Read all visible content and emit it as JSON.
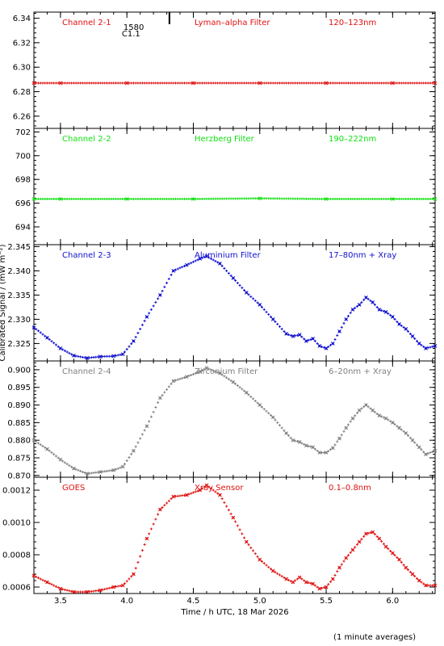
{
  "xlabel": "Time / h UTC, 18 Mar 2026",
  "ylabel": "Calibrated Signal / (mW m⁻²)",
  "footnote": "(1 minute averages)",
  "xaxis": {
    "range": [
      3.3,
      6.32
    ],
    "ticks": [
      "3.5",
      "4.0",
      "4.5",
      "5.0",
      "5.5",
      "6.0"
    ]
  },
  "flare_annotation": {
    "time": "1580",
    "class": "C1.1",
    "t_hours": 4.32
  },
  "chart_data": [
    {
      "type": "scatter",
      "channel": "Channel 2-1",
      "filter": "Lyman–alpha Filter",
      "band": "120–123nm",
      "color": "#e01010",
      "ylim": [
        6.25,
        6.345
      ],
      "yticks": [
        "6.26",
        "6.28",
        "6.30",
        "6.32",
        "6.34"
      ],
      "series": [
        {
          "x": [
            3.3,
            3.5,
            4.0,
            4.5,
            5.0,
            5.5,
            6.0,
            6.32
          ],
          "y": [
            6.287,
            6.287,
            6.287,
            6.287,
            6.287,
            6.287,
            6.287,
            6.287
          ]
        }
      ]
    },
    {
      "type": "scatter",
      "channel": "Channel 2-2",
      "filter": "Herzberg Filter",
      "band": "190–222nm",
      "color": "#10e010",
      "ylim": [
        692.5,
        702.3
      ],
      "yticks": [
        "694",
        "696",
        "698",
        "700",
        "702"
      ],
      "series": [
        {
          "x": [
            3.3,
            3.5,
            4.0,
            4.5,
            5.0,
            5.5,
            6.0,
            6.32
          ],
          "y": [
            696.35,
            696.35,
            696.35,
            696.35,
            696.4,
            696.35,
            696.35,
            696.35
          ]
        }
      ]
    },
    {
      "type": "scatter",
      "channel": "Channel 2-3",
      "filter": "Aluminium Filter",
      "band": "17–80nm + Xray",
      "color": "#1010d0",
      "ylim": [
        2.3214,
        2.3454
      ],
      "yticks": [
        "2.325",
        "2.330",
        "2.335",
        "2.340",
        "2.345"
      ],
      "series": [
        {
          "x": [
            3.3,
            3.4,
            3.5,
            3.6,
            3.7,
            3.8,
            3.9,
            3.97,
            4.05,
            4.15,
            4.25,
            4.35,
            4.45,
            4.55,
            4.6,
            4.7,
            4.8,
            4.9,
            5.0,
            5.1,
            5.2,
            5.25,
            5.3,
            5.35,
            5.4,
            5.45,
            5.5,
            5.55,
            5.6,
            5.65,
            5.7,
            5.75,
            5.8,
            5.85,
            5.9,
            5.95,
            6.0,
            6.05,
            6.1,
            6.15,
            6.2,
            6.25,
            6.32
          ],
          "y": [
            2.3283,
            2.3262,
            2.324,
            2.3225,
            2.322,
            2.3223,
            2.3224,
            2.3228,
            2.3255,
            2.3305,
            2.335,
            2.34,
            2.3412,
            2.3425,
            2.343,
            2.3415,
            2.3385,
            2.3355,
            2.333,
            2.33,
            2.327,
            2.3265,
            2.3268,
            2.3255,
            2.326,
            2.3245,
            2.324,
            2.325,
            2.3275,
            2.33,
            2.332,
            2.333,
            2.3345,
            2.3335,
            2.332,
            2.3315,
            2.3305,
            2.329,
            2.328,
            2.3265,
            2.325,
            2.324,
            2.3245
          ]
        }
      ]
    },
    {
      "type": "scatter",
      "channel": "Channel 2-4",
      "filter": "Zirconium Filter",
      "band": "6–20nm + Xray",
      "color": "#808080",
      "ylim": [
        0.8695,
        0.9025
      ],
      "yticks": [
        "0.870",
        "0.875",
        "0.880",
        "0.885",
        "0.890",
        "0.895",
        "0.900"
      ],
      "series": [
        {
          "x": [
            3.3,
            3.4,
            3.5,
            3.6,
            3.7,
            3.8,
            3.9,
            3.97,
            4.05,
            4.15,
            4.25,
            4.35,
            4.45,
            4.55,
            4.6,
            4.7,
            4.8,
            4.9,
            5.0,
            5.1,
            5.2,
            5.25,
            5.3,
            5.35,
            5.4,
            5.45,
            5.5,
            5.55,
            5.6,
            5.65,
            5.7,
            5.75,
            5.8,
            5.85,
            5.9,
            5.95,
            6.0,
            6.05,
            6.1,
            6.15,
            6.2,
            6.25,
            6.32
          ],
          "y": [
            0.88,
            0.8775,
            0.8745,
            0.872,
            0.8705,
            0.871,
            0.8715,
            0.8725,
            0.877,
            0.884,
            0.892,
            0.8968,
            0.898,
            0.8995,
            0.9005,
            0.899,
            0.8965,
            0.8935,
            0.89,
            0.8865,
            0.882,
            0.88,
            0.8795,
            0.8785,
            0.878,
            0.8765,
            0.8765,
            0.8778,
            0.8805,
            0.8835,
            0.8862,
            0.8885,
            0.89,
            0.8885,
            0.887,
            0.8862,
            0.885,
            0.8835,
            0.882,
            0.88,
            0.878,
            0.876,
            0.877
          ]
        }
      ]
    },
    {
      "type": "scatter",
      "channel": "GOES",
      "filter": "Xray Sensor",
      "band": "0.1–0.8nm",
      "color": "#e01010",
      "ylim": [
        0.00056,
        0.00128
      ],
      "yticks": [
        "0.0006",
        "0.0008",
        "0.0010",
        "0.0012"
      ],
      "series": [
        {
          "x": [
            3.3,
            3.4,
            3.5,
            3.6,
            3.7,
            3.8,
            3.9,
            3.97,
            4.05,
            4.15,
            4.25,
            4.35,
            4.45,
            4.55,
            4.6,
            4.7,
            4.8,
            4.9,
            5.0,
            5.1,
            5.2,
            5.25,
            5.3,
            5.35,
            5.4,
            5.45,
            5.5,
            5.55,
            5.6,
            5.65,
            5.7,
            5.75,
            5.8,
            5.85,
            5.9,
            5.95,
            6.0,
            6.05,
            6.1,
            6.15,
            6.2,
            6.25,
            6.32
          ],
          "y": [
            0.00067,
            0.00063,
            0.00059,
            0.00057,
            0.00057,
            0.00058,
            0.0006,
            0.00061,
            0.00068,
            0.0009,
            0.00108,
            0.00116,
            0.00117,
            0.0012,
            0.00123,
            0.00117,
            0.00103,
            0.00088,
            0.00077,
            0.0007,
            0.00065,
            0.00063,
            0.00066,
            0.00063,
            0.00062,
            0.00059,
            0.0006,
            0.00065,
            0.00072,
            0.00078,
            0.00083,
            0.00088,
            0.00093,
            0.00094,
            0.0009,
            0.00085,
            0.00081,
            0.00077,
            0.00072,
            0.00068,
            0.00064,
            0.00061,
            0.00061
          ]
        }
      ]
    }
  ]
}
